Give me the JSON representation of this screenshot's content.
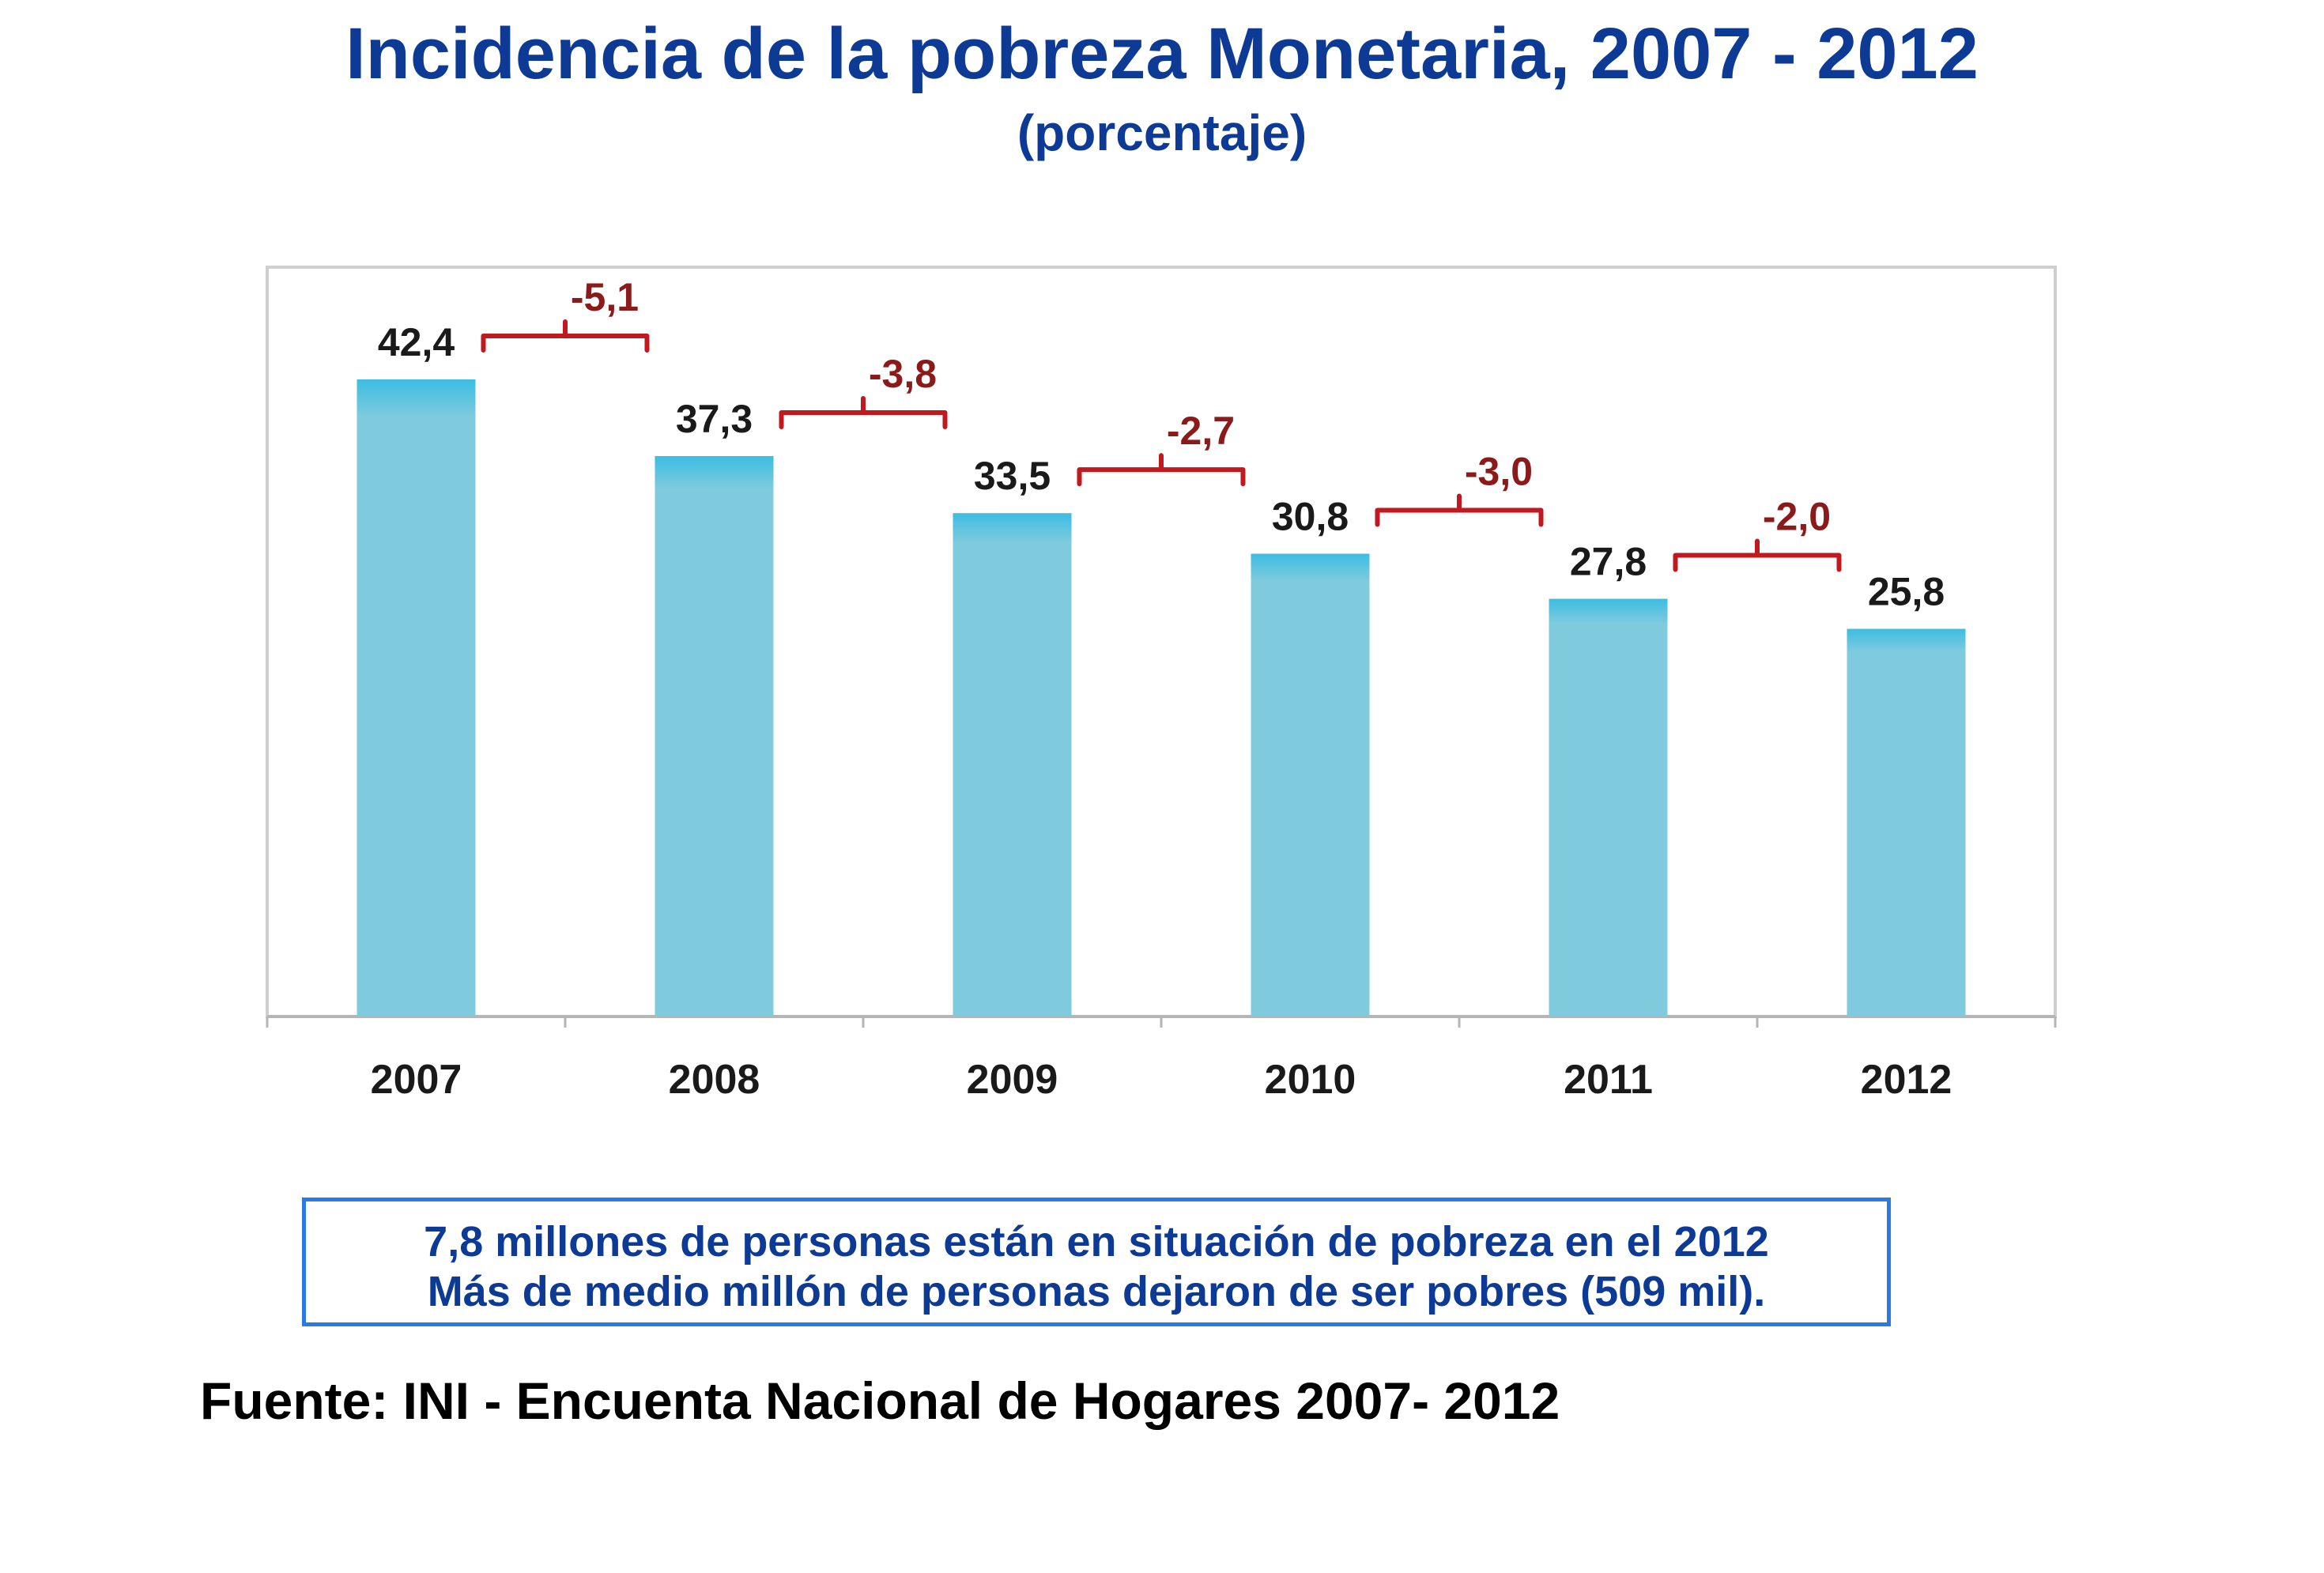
{
  "title": "Incidencia de la pobreza Monetaria, 2007 - 2012",
  "subtitle": "(porcentaje)",
  "chart_data": {
    "type": "bar",
    "categories": [
      "2007",
      "2008",
      "2009",
      "2010",
      "2011",
      "2012"
    ],
    "values": [
      42.4,
      37.3,
      33.5,
      30.8,
      27.8,
      25.8
    ],
    "value_labels": [
      "42,4",
      "37,3",
      "33,5",
      "30,8",
      "27,8",
      "25,8"
    ],
    "differences": [
      "-5,1",
      "-3,8",
      "-2,7",
      "-3,0",
      "-2,0"
    ],
    "xlabel": "",
    "ylabel": "",
    "ylim": [
      0,
      42.4
    ],
    "grid": false,
    "bar_color": "#7fcbdd",
    "bar_top_color": "#3cbde2",
    "diff_color": "#c0191f",
    "diff_text_color": "#8b1a1a"
  },
  "note": {
    "line1": "7,8 millones de personas están en situación de pobreza en el 2012",
    "line2": "Más de medio millón de personas dejaron de ser pobres (509 mil)."
  },
  "source": "Fuente: INI - Encuenta Nacional de Hogares 2007- 2012"
}
